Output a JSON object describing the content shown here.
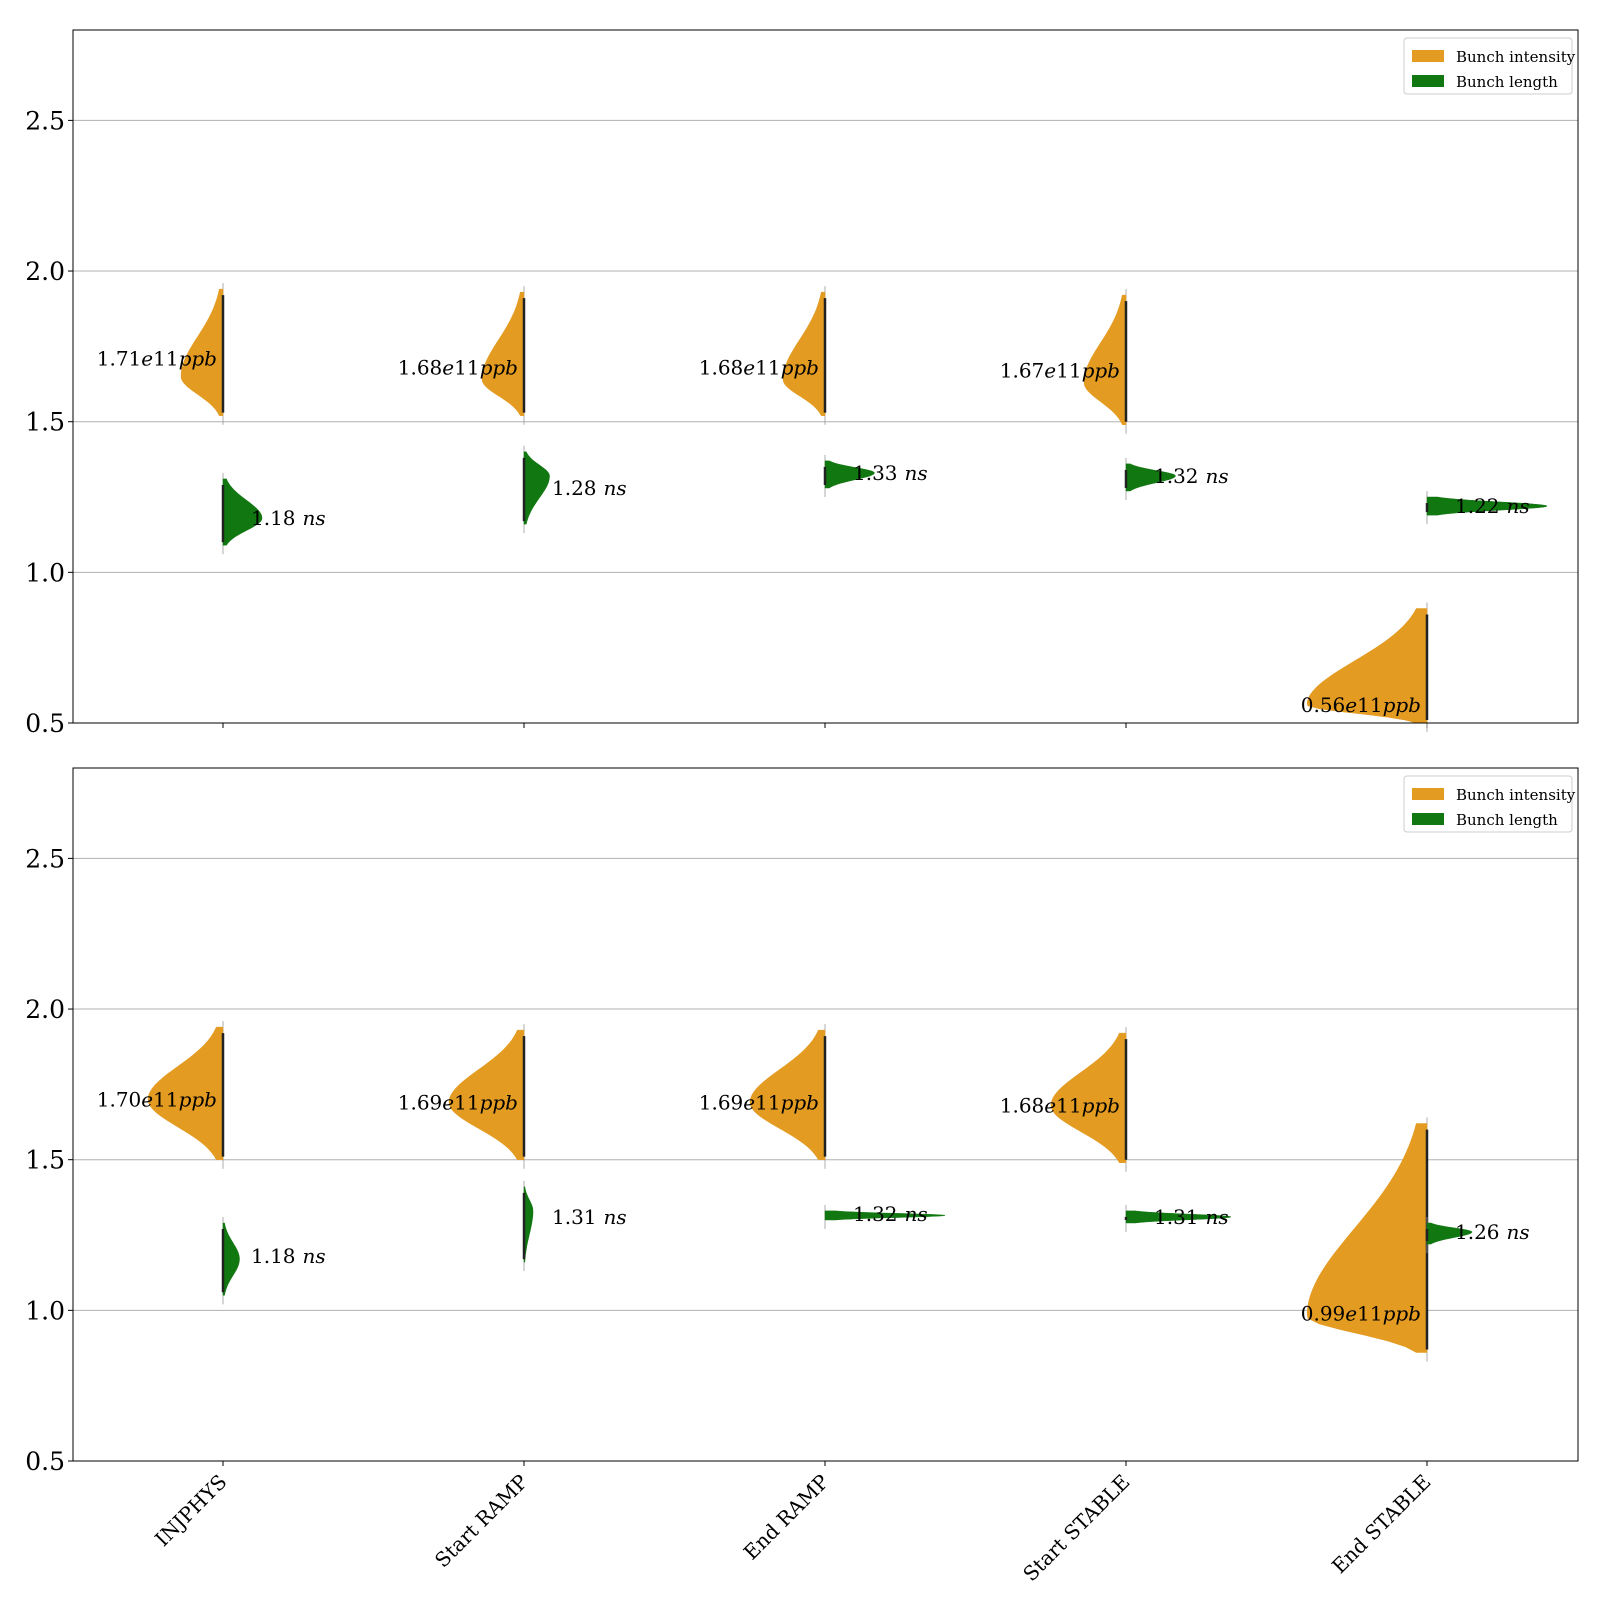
{
  "colors": {
    "intensity": "#e39b21",
    "length": "#117711",
    "grid": "#b0b0b0",
    "frame": "#000000"
  },
  "chart_data": {
    "type": "violin",
    "categories": [
      "INJPHYS",
      "Start RAMP",
      "End RAMP",
      "Start STABLE",
      "End STABLE"
    ],
    "y_ticks": [
      "0.5",
      "1.0",
      "1.5",
      "2.0",
      "2.5"
    ],
    "ylim": [
      0.5,
      2.8
    ],
    "grid": true,
    "legend_position": "top-right",
    "legend": [
      {
        "key": "intensity",
        "label": "Bunch intensity",
        "color": "#e39b21"
      },
      {
        "key": "length",
        "label": "Bunch length",
        "color": "#117711"
      }
    ],
    "panels": [
      {
        "intensity": [
          {
            "value": 1.71,
            "label": "1.71e11ppb",
            "label_parts": [
              "1.71",
              "e",
              "11",
              "ppb"
            ],
            "lo": 1.52,
            "hi": 1.94,
            "peak": 1.65,
            "peakw": 0.28
          },
          {
            "value": 1.68,
            "label": "1.68e11ppb",
            "label_parts": [
              "1.68",
              "e",
              "11",
              "ppb"
            ],
            "lo": 1.52,
            "hi": 1.93,
            "peak": 1.64,
            "peakw": 0.28
          },
          {
            "value": 1.68,
            "label": "1.68e11ppb",
            "label_parts": [
              "1.68",
              "e",
              "11",
              "ppb"
            ],
            "lo": 1.52,
            "hi": 1.93,
            "peak": 1.64,
            "peakw": 0.28
          },
          {
            "value": 1.67,
            "label": "1.67e11ppb",
            "label_parts": [
              "1.67",
              "e",
              "11",
              "ppb"
            ],
            "lo": 1.49,
            "hi": 1.92,
            "peak": 1.63,
            "peakw": 0.28
          },
          {
            "value": 0.56,
            "label": "0.56e11ppb",
            "label_parts": [
              "0.56",
              "e",
              "11",
              "ppb"
            ],
            "lo": 0.5,
            "hi": 0.88,
            "peak": 0.56,
            "peakw": 0.8
          }
        ],
        "length": [
          {
            "value": 1.18,
            "label": "1.18 ns",
            "label_parts": [
              "1.18",
              "ns"
            ],
            "lo": 1.09,
            "hi": 1.31,
            "peak": 1.18,
            "peakw": 0.26
          },
          {
            "value": 1.28,
            "label": "1.28 ns",
            "label_parts": [
              "1.28",
              "ns"
            ],
            "lo": 1.16,
            "hi": 1.4,
            "peak": 1.32,
            "peakw": 0.17
          },
          {
            "value": 1.33,
            "label": "1.33 ns",
            "label_parts": [
              "1.33",
              "ns"
            ],
            "lo": 1.28,
            "hi": 1.37,
            "peak": 1.33,
            "peakw": 0.33
          },
          {
            "value": 1.32,
            "label": "1.32 ns",
            "label_parts": [
              "1.32",
              "ns"
            ],
            "lo": 1.27,
            "hi": 1.36,
            "peak": 1.32,
            "peakw": 0.33
          },
          {
            "value": 1.22,
            "label": "1.22 ns",
            "label_parts": [
              "1.22",
              "ns"
            ],
            "lo": 1.19,
            "hi": 1.25,
            "peak": 1.22,
            "peakw": 0.8
          }
        ]
      },
      {
        "intensity": [
          {
            "value": 1.7,
            "label": "1.70e11ppb",
            "label_parts": [
              "1.70",
              "e",
              "11",
              "ppb"
            ],
            "lo": 1.5,
            "hi": 1.94,
            "peak": 1.7,
            "peakw": 0.5
          },
          {
            "value": 1.69,
            "label": "1.69e11ppb",
            "label_parts": [
              "1.69",
              "e",
              "11",
              "ppb"
            ],
            "lo": 1.5,
            "hi": 1.93,
            "peak": 1.69,
            "peakw": 0.5
          },
          {
            "value": 1.69,
            "label": "1.69e11ppb",
            "label_parts": [
              "1.69",
              "e",
              "11",
              "ppb"
            ],
            "lo": 1.5,
            "hi": 1.93,
            "peak": 1.69,
            "peakw": 0.5
          },
          {
            "value": 1.68,
            "label": "1.68e11ppb",
            "label_parts": [
              "1.68",
              "e",
              "11",
              "ppb"
            ],
            "lo": 1.49,
            "hi": 1.92,
            "peak": 1.68,
            "peakw": 0.5
          },
          {
            "value": 0.99,
            "label": "0.99e11ppb",
            "label_parts": [
              "0.99",
              "e",
              "11",
              "ppb"
            ],
            "lo": 0.86,
            "hi": 1.62,
            "peak": 0.98,
            "peakw": 0.8
          }
        ],
        "length": [
          {
            "value": 1.18,
            "label": "1.18 ns",
            "label_parts": [
              "1.18",
              "ns"
            ],
            "lo": 1.05,
            "hi": 1.29,
            "peak": 1.17,
            "peakw": 0.11
          },
          {
            "value": 1.31,
            "label": "1.31 ns",
            "label_parts": [
              "1.31",
              "ns"
            ],
            "lo": 1.16,
            "hi": 1.41,
            "peak": 1.33,
            "peakw": 0.06
          },
          {
            "value": 1.32,
            "label": "1.32 ns",
            "label_parts": [
              "1.32",
              "ns"
            ],
            "lo": 1.3,
            "hi": 1.33,
            "peak": 1.315,
            "peakw": 0.8
          },
          {
            "value": 1.31,
            "label": "1.31 ns",
            "label_parts": [
              "1.31",
              "ns"
            ],
            "lo": 1.29,
            "hi": 1.33,
            "peak": 1.31,
            "peakw": 0.7
          },
          {
            "value": 1.26,
            "label": "1.26 ns",
            "label_parts": [
              "1.26",
              "ns"
            ],
            "lo": 1.22,
            "hi": 1.29,
            "peak": 1.26,
            "peakw": 0.3
          }
        ]
      }
    ]
  }
}
